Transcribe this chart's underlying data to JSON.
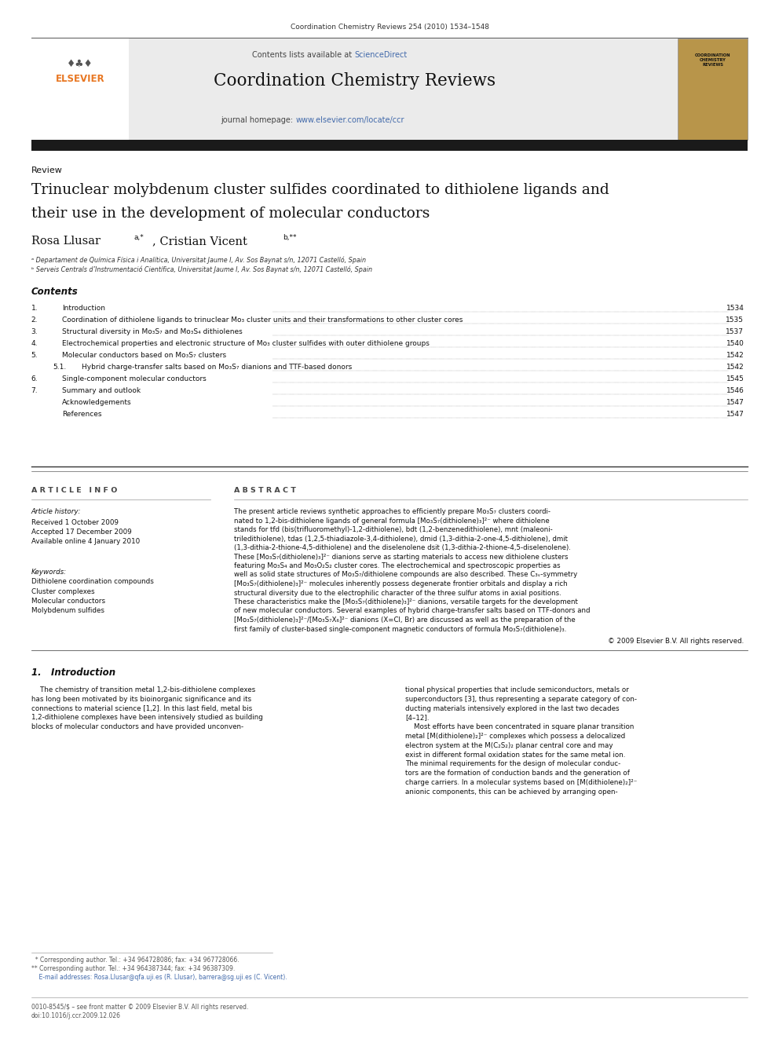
{
  "page_width": 9.92,
  "page_height": 13.23,
  "background_color": "#ffffff",
  "journal_ref": "Coordination Chemistry Reviews 254 (2010) 1534–1548",
  "header_bg": "#ebebeb",
  "science_direct_color": "#4169aa",
  "journal_title": "Coordination Chemistry Reviews",
  "journal_homepage_color": "#4169aa",
  "separator_color": "#000000",
  "dark_bar_color": "#2c2c2c",
  "section_label": "Review",
  "article_title_line1": "Trinuclear molybdenum cluster sulfides coordinated to dithiolene ligands and",
  "article_title_line2": "their use in the development of molecular conductors",
  "affil_a": "ᵃ Departament de Química Física i Analítica, Universitat Jaume I, Av. Sos Baynat s/n, 12071 Castelló, Spain",
  "affil_b": "ᵇ Serveis Centrals d’Instrumentació Científica, Universitat Jaume I, Av. Sos Baynat s/n, 12071 Castelló, Spain",
  "contents_header": "Contents",
  "toc": [
    {
      "num": "1.",
      "text": "Introduction",
      "page": "1534",
      "indent": 0
    },
    {
      "num": "2.",
      "text": "Coordination of dithiolene ligands to trinuclear Mo₃ cluster units and their transformations to other cluster cores",
      "page": "1535",
      "indent": 0
    },
    {
      "num": "3.",
      "text": "Structural diversity in Mo₃S₇ and Mo₃S₄ dithiolenes",
      "page": "1537",
      "indent": 0
    },
    {
      "num": "4.",
      "text": "Electrochemical properties and electronic structure of Mo₃ cluster sulfides with outer dithiolene groups",
      "page": "1540",
      "indent": 0
    },
    {
      "num": "5.",
      "text": "Molecular conductors based on Mo₃S₇ clusters",
      "page": "1542",
      "indent": 0
    },
    {
      "num": "5.1.",
      "text": "Hybrid charge-transfer salts based on Mo₃S₇ dianions and TTF-based donors",
      "page": "1542",
      "indent": 1
    },
    {
      "num": "6.",
      "text": "Single-component molecular conductors",
      "page": "1545",
      "indent": 0
    },
    {
      "num": "7.",
      "text": "Summary and outlook",
      "page": "1546",
      "indent": 0
    },
    {
      "num": "",
      "text": "Acknowledgements",
      "page": "1547",
      "indent": 0
    },
    {
      "num": "",
      "text": "References",
      "page": "1547",
      "indent": 0
    }
  ],
  "article_info_header": "A R T I C L E   I N F O",
  "abstract_header": "A B S T R A C T",
  "article_history_label": "Article history:",
  "received": "Received 1 October 2009",
  "accepted": "Accepted 17 December 2009",
  "available": "Available online 4 January 2010",
  "keywords_label": "Keywords:",
  "keywords": [
    "Dithiolene coordination compounds",
    "Cluster complexes",
    "Molecular conductors",
    "Molybdenum sulfides"
  ],
  "abstract_text": "The present article reviews synthetic approaches to efficiently prepare Mo₃S₇ clusters coordinated to 1,2-bis-dithiolene ligands of general formula [Mo₃S₇(dithiolene)₃]²⁻ where dithiolene stands for tfd (bis(trifluoromethyl)-1,2-dithiolene), bdt (1,2-benzenedithiolene), mnt (maleonitrile­dithiolene), tdas (1,2,5-thiadiazole-3,4-dithiolene), dmid (1,3-dithia-2-one-4,5-dithiolene), dmit (1,3-dithia-2-thione-4,5-dithiolene) and the diselenolene dsit (1,3-dithia-2-thione-4,5-diselenolene). These [Mo₃S₇(dithiolene)₃]²⁻ dianions serve as starting materials to access new dithiolene clusters featuring Mo₃S₄ and Mo₃O₂S₂ cluster cores. The electrochemical and spectroscopic properties as well as solid state structures of Mo₃S₇/dithiolene compounds are also described. These C₃ᵥ-symmetry [Mo₃S₇(dithiolene)₃]²⁻ molecules inherently possess degenerate frontier orbitals and display a rich structural diversity due to the electrophilic character of the three sulfur atoms in axial positions. These characteristics make the [Mo₃S₇(dithiolene)₃]²⁻ dianions, versatile targets for the development of new molecular conductors. Several examples of hybrid charge-transfer salts based on TTF-donors and [Mo₃S₇(dithiolene)₃]²⁻/[Mo₃S₇X₆]²⁻ dianions (X=Cl, Br) are discussed as well as the preparation of the first family of cluster-based single-component magnetic conductors of formula Mo₃S₇(dithiolene)₃.",
  "copyright": "© 2009 Elsevier B.V. All rights reserved.",
  "intro_header": "1.   Introduction",
  "intro_col1_lines": [
    "    The chemistry of transition metal 1,2-bis-dithiolene complexes",
    "has long been motivated by its bioinorganic significance and its",
    "connections to material science [1,2]. In this last field, metal bis",
    "1,2-dithiolene complexes have been intensively studied as building",
    "blocks of molecular conductors and have provided unconven-"
  ],
  "intro_col2_lines": [
    "tional physical properties that include semiconductors, metals or",
    "superconductors [3], thus representing a separate category of con-",
    "ducting materials intensively explored in the last two decades",
    "[4–12].",
    "    Most efforts have been concentrated in square planar transition",
    "metal [M(dithiolene)₂]²⁻ complexes which possess a delocalized",
    "electron system at the M(C₂S₂)₂ planar central core and may",
    "exist in different formal oxidation states for the same metal ion.",
    "The minimal requirements for the design of molecular conduc-",
    "tors are the formation of conduction bands and the generation of",
    "charge carriers. In a molecular systems based on [M(dithiolene)₂]²⁻",
    "anionic components, this can be achieved by arranging open-"
  ],
  "footer_line1": "0010-8545/$ – see front matter © 2009 Elsevier B.V. All rights reserved.",
  "footer_line2": "doi:10.1016/j.ccr.2009.12.026",
  "footnote1": "  * Corresponding author. Tel.: +34 964728086; fax: +34 967728066.",
  "footnote2": "** Corresponding author. Tel.: +34 964387344; fax: +34 96387309.",
  "footnote3": "    E-mail addresses: Rosa.Llusar@qfa.uji.es (R. Llusar), barrera@sg.uji.es (C. Vicent)."
}
